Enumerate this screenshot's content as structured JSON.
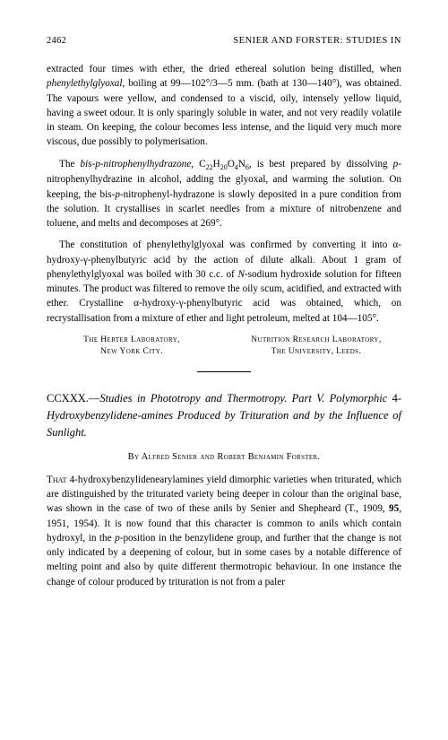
{
  "header": {
    "page_number": "2462",
    "running_head": "SENIER AND FORSTER: STUDIES IN"
  },
  "paragraphs": {
    "p1_a": "extracted four times with ether, the dried ethereal solution being distilled, when ",
    "p1_italic1": "phenylethylglyoxal",
    "p1_b": ", boiling at 99—102°/3—5 mm. (bath at 130—140°), was obtained. The vapours were yellow, and condensed to a viscid, oily, intensely yellow liquid, having a sweet odour. It is only sparingly soluble in water, and not very readily volatile in steam. On keeping, the colour becomes less intense, and the liquid very much more viscous, due possibly to polymerisation.",
    "p2_a": "The ",
    "p2_italic1": "bis-",
    "p2_b": "p",
    "p2_italic2": "-nitrophenylhydrazone",
    "p2_c": ", C",
    "p2_sub1": "22",
    "p2_d": "H",
    "p2_sub2": "20",
    "p2_e": "O",
    "p2_sub3": "4",
    "p2_f": "N",
    "p2_sub4": "6",
    "p2_g": ", is best prepared by dissolving ",
    "p2_italic3": "p",
    "p2_h": "-nitrophenylhydrazine in alcohol, adding the glyoxal, and warming the solution. On keeping, the bis-",
    "p2_italic4": "p",
    "p2_i": "-nitrophenyl-hydrazone is slowly deposited in a pure condition from the solution. It crystallises in scarlet needles from a mixture of nitrobenzene and toluene, and melts and decomposes at 269°.",
    "p3_a": "The constitution of phenylethylglyoxal was confirmed by converting it into α-hydroxy-γ-phenylbutyric acid by the action of dilute alkali. About 1 gram of phenylethylglyoxal was boiled with 30 c.c. of ",
    "p3_italic1": "N",
    "p3_b": "-sodium hydroxide solution for fifteen minutes. The product was filtered to remove the oily scum, acidified, and extracted with ether. Crystalline α-hydroxy-γ-phenylbutyric acid was obtained, which, on recrystallisation from a mixture of ether and light petroleum, melted at 104—105°."
  },
  "affiliations": {
    "left_line1": "The Herter Laboratory,",
    "left_line2": "New York City.",
    "right_line1": "Nutrition Research Laboratory,",
    "right_line2": "The University, Leeds."
  },
  "article": {
    "number": "CCXXX.—",
    "title_part1": "Studies in Phototropy and Thermotropy. Part V. Polymorphic ",
    "title_part2": "4-",
    "title_italic": "Hydroxybenzylidene-amines Produced by Trituration and by the Influence of Sunlight.",
    "byline": "By Alfred Senier and Robert Benjamin Forster.",
    "body_caps": "That",
    "body_a": " 4-hydroxybenzylidenearylamines yield dimorphic varieties when triturated, which are distinguished by the triturated variety being deeper in colour than the original base, was shown in the case of two of these anils by Senier and Shepheard (T., 1909, ",
    "body_bold": "95",
    "body_b": ", 1951, 1954). It is now found that this character is common to anils which contain hydroxyl, in the ",
    "body_italic1": "p",
    "body_c": "-position in the benzylidene group, and further that the change is not only indicated by a deepening of colour, but in some cases by a notable difference of melting point and also by quite different thermotropic behaviour. In one instance the change of colour produced by trituration is not from a paler"
  },
  "styles": {
    "text_color": "#000000",
    "background_color": "#ffffff",
    "body_fontsize": 11.2,
    "header_fontsize": 10.5,
    "title_fontsize": 12.5,
    "affil_fontsize": 9.5,
    "byline_fontsize": 10.5
  }
}
